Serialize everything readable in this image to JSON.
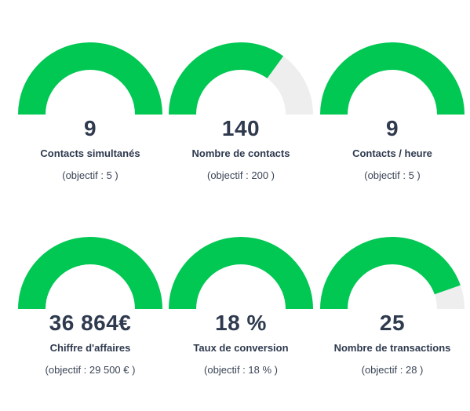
{
  "colors": {
    "fill": "#00c853",
    "track": "#eeeeee",
    "text": "#2f3a4f"
  },
  "kpis": [
    {
      "value": "9",
      "label": "Contacts simultanés",
      "target": "(objectif : 5 )",
      "ratio": 1.0
    },
    {
      "value": "140",
      "label": "Nombre de contacts",
      "target": "(objectif : 200 )",
      "ratio": 0.7
    },
    {
      "value": "9",
      "label": "Contacts / heure",
      "target": "(objectif : 5 )",
      "ratio": 1.0
    },
    {
      "value": "36 864€",
      "label": "Chiffre d'affaires",
      "target": "(objectif : 29 500 € )",
      "ratio": 1.0
    },
    {
      "value": "18 %",
      "label": "Taux de conversion",
      "target": "(objectif : 18 % )",
      "ratio": 1.0
    },
    {
      "value": "25",
      "label": "Nombre de transactions",
      "target": "(objectif : 28 )",
      "ratio": 0.893
    }
  ]
}
